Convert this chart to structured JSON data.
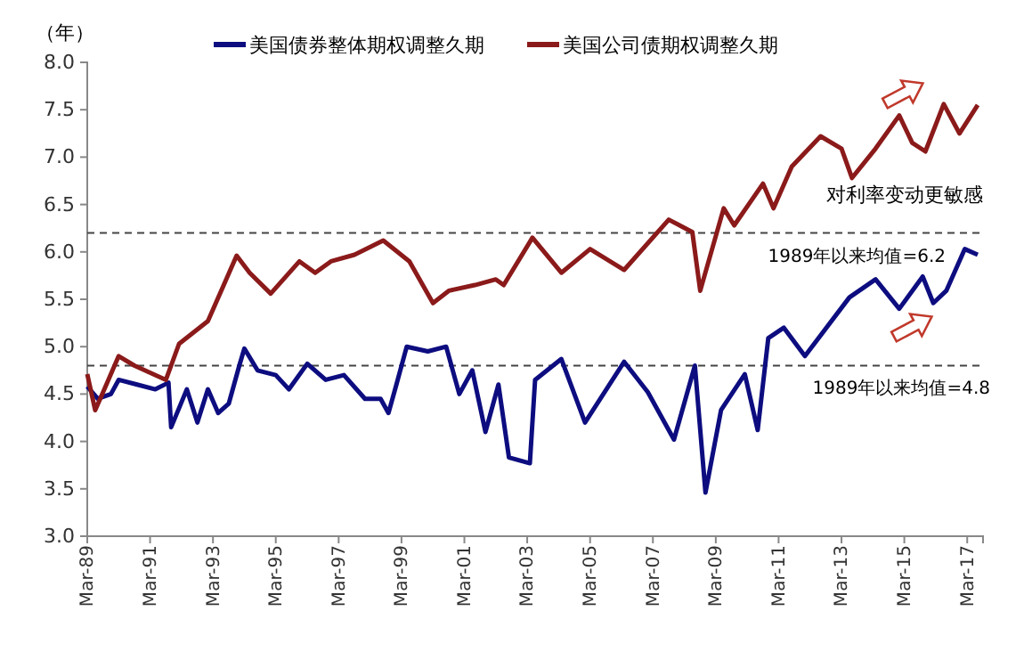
{
  "chart_data": {
    "type": "line",
    "ylabel": "（年）",
    "xlim": [
      "1989-03",
      "2017-09"
    ],
    "xticks": [
      {
        "value": "1989-03",
        "label": "Mar-89"
      },
      {
        "value": "1991-03",
        "label": "Mar-91"
      },
      {
        "value": "1993-03",
        "label": "Mar-93"
      },
      {
        "value": "1995-03",
        "label": "Mar-95"
      },
      {
        "value": "1997-03",
        "label": "Mar-97"
      },
      {
        "value": "1999-03",
        "label": "Mar-99"
      },
      {
        "value": "2001-03",
        "label": "Mar-01"
      },
      {
        "value": "2003-03",
        "label": "Mar-03"
      },
      {
        "value": "2005-03",
        "label": "Mar-05"
      },
      {
        "value": "2007-03",
        "label": "Mar-07"
      },
      {
        "value": "2009-03",
        "label": "Mar-09"
      },
      {
        "value": "2011-03",
        "label": "Mar-11"
      },
      {
        "value": "2013-03",
        "label": "Mar-13"
      },
      {
        "value": "2015-03",
        "label": "Mar-15"
      },
      {
        "value": "2017-03",
        "label": "Mar-17"
      }
    ],
    "ylim": [
      3.0,
      8.0
    ],
    "yticks": [
      {
        "value": 3.0,
        "label": "3.0"
      },
      {
        "value": 3.5,
        "label": "3.5"
      },
      {
        "value": 4.0,
        "label": "4.0"
      },
      {
        "value": 4.5,
        "label": "4.5"
      },
      {
        "value": 5.0,
        "label": "5.0"
      },
      {
        "value": 5.5,
        "label": "5.5"
      },
      {
        "value": 6.0,
        "label": "6.0"
      },
      {
        "value": 6.5,
        "label": "6.5"
      },
      {
        "value": 7.0,
        "label": "7.0"
      },
      {
        "value": 7.5,
        "label": "7.5"
      },
      {
        "value": 8.0,
        "label": "8.0"
      }
    ],
    "legend": "top",
    "grid": false,
    "line_style": "solid",
    "series": [
      {
        "name": "美国债券整体期权调整久期",
        "color": "#0d0d80",
        "x": [
          "1989-03",
          "1989-07",
          "1989-12",
          "1990-03",
          "1990-10",
          "1991-05",
          "1991-10",
          "1991-11",
          "1992-05",
          "1992-09",
          "1993-01",
          "1993-05",
          "1993-09",
          "1994-01",
          "1994-03",
          "1994-08",
          "1995-03",
          "1995-08",
          "1996-03",
          "1996-10",
          "1997-05",
          "1998-01",
          "1998-07",
          "1998-10",
          "1999-01",
          "1999-05",
          "2000-01",
          "2000-08",
          "2001-01",
          "2001-06",
          "2001-11",
          "2002-04",
          "2002-08",
          "2003-04",
          "2003-06",
          "2004-04",
          "2005-01",
          "2006-04",
          "2007-01",
          "2007-11",
          "2008-07",
          "2008-11",
          "2009-05",
          "2010-02",
          "2010-07",
          "2010-11",
          "2011-05",
          "2012-01",
          "2013-06",
          "2014-04",
          "2015-01",
          "2015-10",
          "2016-02",
          "2016-07",
          "2017-02",
          "2017-07"
        ],
        "values": [
          4.58,
          4.45,
          4.5,
          4.65,
          4.6,
          4.55,
          4.62,
          4.15,
          4.55,
          4.2,
          4.55,
          4.3,
          4.4,
          4.8,
          4.98,
          4.75,
          4.7,
          4.55,
          4.82,
          4.65,
          4.7,
          4.45,
          4.45,
          4.3,
          4.6,
          5.0,
          4.95,
          5.0,
          4.5,
          4.75,
          4.1,
          4.6,
          3.83,
          3.77,
          4.65,
          4.87,
          4.2,
          4.84,
          4.52,
          4.02,
          4.8,
          3.46,
          4.33,
          4.71,
          4.12,
          5.09,
          5.2,
          4.9,
          5.52,
          5.71,
          5.4,
          5.74,
          5.46,
          5.59,
          6.03,
          5.97
        ]
      },
      {
        "name": "美国公司债期权调整久期",
        "color": "#8b1a1a",
        "x": [
          "1989-03",
          "1989-06",
          "1989-09",
          "1990-03",
          "1990-09",
          "1991-09",
          "1992-02",
          "1993-01",
          "1993-12",
          "1994-05",
          "1995-01",
          "1995-12",
          "1996-06",
          "1996-12",
          "1997-09",
          "1998-08",
          "1999-06",
          "2000-03",
          "2000-09",
          "2001-07",
          "2002-03",
          "2002-06",
          "2003-05",
          "2004-04",
          "2005-03",
          "2006-04",
          "2007-09",
          "2008-06",
          "2008-09",
          "2009-06",
          "2009-10",
          "2010-09",
          "2011-01",
          "2011-08",
          "2012-07",
          "2013-03",
          "2013-07",
          "2014-04",
          "2015-01",
          "2015-06",
          "2015-11",
          "2016-06",
          "2016-12",
          "2017-07"
        ],
        "values": [
          4.71,
          4.33,
          4.52,
          4.9,
          4.8,
          4.65,
          5.03,
          5.27,
          5.96,
          5.78,
          5.56,
          5.9,
          5.78,
          5.9,
          5.97,
          6.12,
          5.9,
          5.46,
          5.59,
          5.65,
          5.71,
          5.65,
          6.15,
          5.78,
          6.03,
          5.81,
          6.34,
          6.21,
          5.59,
          6.46,
          6.28,
          6.72,
          6.46,
          6.9,
          7.22,
          7.09,
          6.78,
          7.09,
          7.44,
          7.15,
          7.06,
          7.56,
          7.25,
          7.55
        ]
      }
    ],
    "ref_lines": [
      {
        "axis": "y",
        "value": 6.2,
        "label": "1989年以来均值=6.2",
        "color": "#444444",
        "line_style": "dashed"
      },
      {
        "axis": "y",
        "value": 4.8,
        "label": "1989年以来均值=4.8",
        "color": "#444444",
        "line_style": "dashed"
      }
    ],
    "annotations": [
      "对利率变动更敏感"
    ]
  }
}
